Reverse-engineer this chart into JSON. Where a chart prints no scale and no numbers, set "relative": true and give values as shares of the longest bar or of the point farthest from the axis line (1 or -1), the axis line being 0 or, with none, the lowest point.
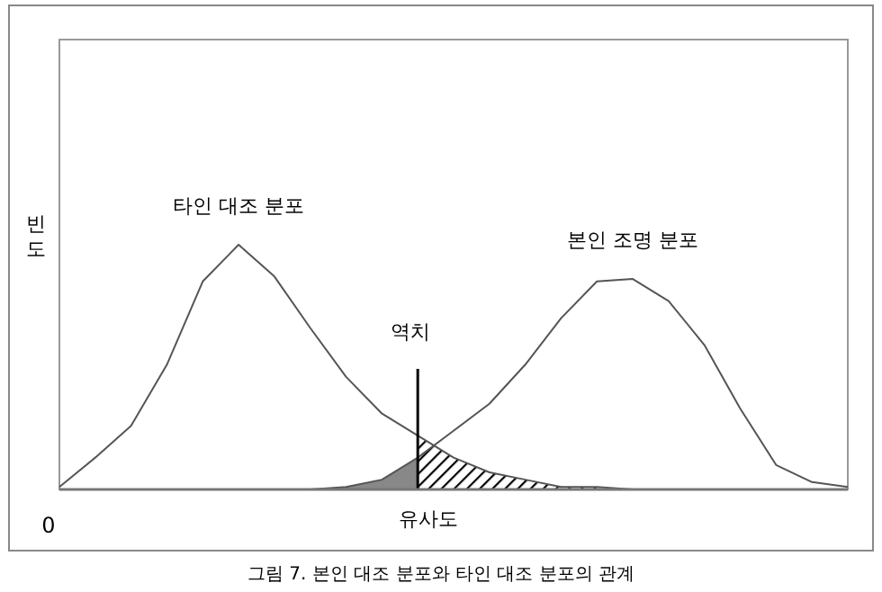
{
  "chart_data": {
    "type": "line",
    "relative": true,
    "xlabel": "유사도",
    "ylabel": "빈도",
    "categories": [
      null,
      null,
      null,
      null,
      null,
      null,
      null,
      null,
      null,
      null,
      null,
      null,
      null,
      null,
      null,
      null,
      null,
      null,
      null,
      null,
      null,
      null,
      null
    ],
    "series": [
      {
        "name": "타인 대조 분포",
        "color": "#555555",
        "values": [
          0.01,
          0.13,
          0.26,
          0.51,
          0.85,
          1,
          0.87,
          0.66,
          0.46,
          0.31,
          0.22,
          0.13,
          0.07,
          0.04,
          0.01,
          0.01,
          0,
          0,
          0,
          0,
          0,
          0,
          0
        ]
      },
      {
        "name": "본인 조명 분포",
        "color": "#555555",
        "values": [
          0,
          0,
          0,
          0,
          0,
          0,
          0,
          0,
          0.01,
          0.04,
          0.13,
          0.24,
          0.35,
          0.51,
          0.7,
          0.85,
          0.86,
          0.77,
          0.59,
          0.33,
          0.1,
          0.03,
          0.01
        ]
      },
      {
        "type": "area",
        "color": "#888888",
        "values": [
          null,
          null,
          null,
          null,
          null,
          null,
          null,
          0,
          0.01,
          0.04,
          0.13,
          null,
          null,
          null,
          null,
          null,
          null,
          null,
          null,
          null,
          null,
          null,
          null
        ]
      },
      {
        "type": "area",
        "color": "#000000",
        "values": [
          null,
          null,
          null,
          null,
          null,
          null,
          null,
          null,
          null,
          null,
          0.22,
          0.13,
          0.07,
          0.04,
          0.01,
          0.01,
          0,
          null,
          null,
          null,
          null,
          null,
          null
        ]
      }
    ],
    "annotations": [
      "0",
      "그림 7. 본인 대조 분포와 타인 대조 분포의 관계",
      "역치"
    ]
  }
}
